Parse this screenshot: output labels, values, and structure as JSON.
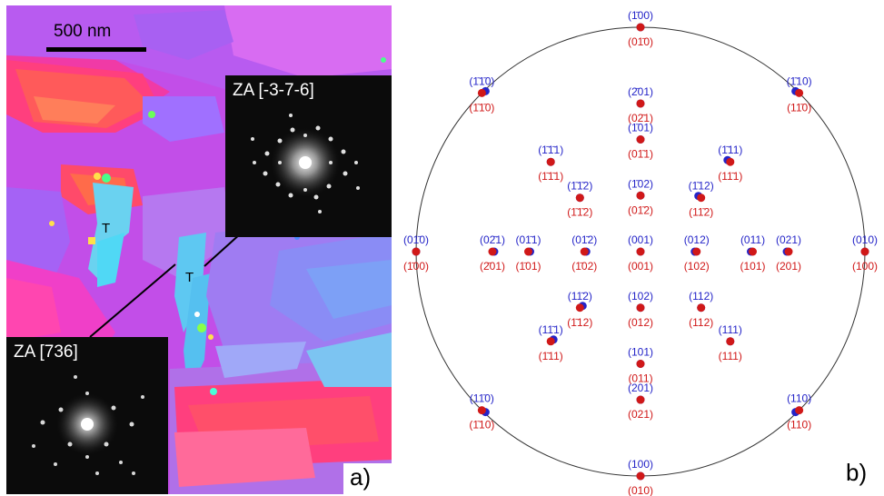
{
  "panel_a": {
    "scale_bar_label": "500 nm",
    "twin_label": "T",
    "panel_tag": "a)",
    "insets": [
      {
        "id": "top",
        "label": "ZA [-3-7-6]"
      },
      {
        "id": "bottom",
        "label": "ZA [736]"
      }
    ]
  },
  "panel_b": {
    "panel_tag": "b)",
    "colors": {
      "variant_1": "#2424c8",
      "variant_2": "#d01818",
      "circle": "#333333"
    },
    "poles": [
      {
        "blue": "(1̄00)",
        "red": "(01̄0)",
        "gx": 0,
        "gy": -1,
        "bdx": 0,
        "bdy": 0
      },
      {
        "blue": "(1̄1̄0)",
        "red": "(1̄1̄0)",
        "gx": -0.707,
        "gy": -0.707,
        "bdx": 4,
        "bdy": -2
      },
      {
        "blue": "(1̄10)",
        "red": "(11̄0)",
        "gx": 0.707,
        "gy": -0.707,
        "bdx": -4,
        "bdy": -2
      },
      {
        "blue": "(2̄01)",
        "red": "(02̄1)",
        "gx": 0,
        "gy": -0.66,
        "bdx": 0,
        "bdy": 0
      },
      {
        "blue": "(1̄01)",
        "red": "(01̄1)",
        "gx": 0,
        "gy": -0.5,
        "bdx": 0,
        "bdy": 0
      },
      {
        "blue": "(1̄1̄1)",
        "red": "(1̄1̄1)",
        "gx": -0.4,
        "gy": -0.4,
        "bdx": 0,
        "bdy": 0
      },
      {
        "blue": "(1̄11)",
        "red": "(11̄1)",
        "gx": 0.4,
        "gy": -0.4,
        "bdx": -3,
        "bdy": -2
      },
      {
        "blue": "(1̄1̄2)",
        "red": "(1̄1̄2)",
        "gx": -0.27,
        "gy": -0.24,
        "bdx": 0,
        "bdy": 0
      },
      {
        "blue": "(1̄02)",
        "red": "(01̄2)",
        "gx": 0,
        "gy": -0.25,
        "bdx": 0,
        "bdy": 0
      },
      {
        "blue": "(1̄12)",
        "red": "(11̄2)",
        "gx": 0.27,
        "gy": -0.24,
        "bdx": -3,
        "bdy": -2
      },
      {
        "blue": "(01̄0)",
        "red": "(1̄00)",
        "gx": -1,
        "gy": 0,
        "bdx": 0,
        "bdy": 0
      },
      {
        "blue": "(02̄1)",
        "red": "(2̄01)",
        "gx": -0.66,
        "gy": 0,
        "bdx": 2,
        "bdy": 0
      },
      {
        "blue": "(01̄1)",
        "red": "(1̄01)",
        "gx": -0.5,
        "gy": 0,
        "bdx": 2,
        "bdy": 0
      },
      {
        "blue": "(01̄2)",
        "red": "(1̄02)",
        "gx": -0.25,
        "gy": 0,
        "bdx": 2,
        "bdy": 0
      },
      {
        "blue": "(001)",
        "red": "(001)",
        "gx": 0,
        "gy": 0,
        "bdx": 0,
        "bdy": 0
      },
      {
        "blue": "(012)",
        "red": "(102)",
        "gx": 0.25,
        "gy": 0,
        "bdx": -2,
        "bdy": 0
      },
      {
        "blue": "(011)",
        "red": "(101)",
        "gx": 0.5,
        "gy": 0,
        "bdx": -2,
        "bdy": 0
      },
      {
        "blue": "(021)",
        "red": "(201)",
        "gx": 0.66,
        "gy": 0,
        "bdx": -2,
        "bdy": 0
      },
      {
        "blue": "(010)",
        "red": "(100)",
        "gx": 1,
        "gy": 0,
        "bdx": 0,
        "bdy": 0
      },
      {
        "blue": "(11̄2)",
        "red": "(1̄12)",
        "gx": -0.27,
        "gy": 0.25,
        "bdx": 3,
        "bdy": -2
      },
      {
        "blue": "(102)",
        "red": "(012)",
        "gx": 0,
        "gy": 0.25,
        "bdx": 0,
        "bdy": 0
      },
      {
        "blue": "(112)",
        "red": "(112)",
        "gx": 0.27,
        "gy": 0.25,
        "bdx": 0,
        "bdy": 0
      },
      {
        "blue": "(11̄1)",
        "red": "(1̄11)",
        "gx": -0.4,
        "gy": 0.4,
        "bdx": 3,
        "bdy": -2
      },
      {
        "blue": "(111)",
        "red": "(111)",
        "gx": 0.4,
        "gy": 0.4,
        "bdx": 0,
        "bdy": 0
      },
      {
        "blue": "(101)",
        "red": "(011)",
        "gx": 0,
        "gy": 0.5,
        "bdx": 0,
        "bdy": 0
      },
      {
        "blue": "(201)",
        "red": "(021)",
        "gx": 0,
        "gy": 0.66,
        "bdx": 0,
        "bdy": 0
      },
      {
        "blue": "(11̄0)",
        "red": "(1̄10)",
        "gx": -0.707,
        "gy": 0.707,
        "bdx": 4,
        "bdy": 2
      },
      {
        "blue": "(110)",
        "red": "(110)",
        "gx": 0.707,
        "gy": 0.707,
        "bdx": -4,
        "bdy": 2
      },
      {
        "blue": "(100)",
        "red": "(010)",
        "gx": 0,
        "gy": 1,
        "bdx": 0,
        "bdy": 0
      }
    ]
  }
}
